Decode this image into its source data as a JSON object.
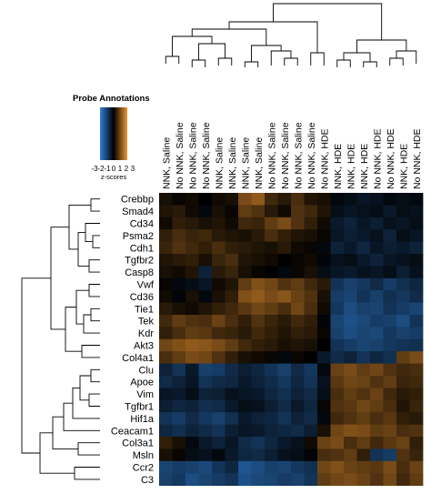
{
  "legend": {
    "title": "Probe Annotations",
    "tick_labels": [
      "-3",
      "-2",
      "-1",
      "0",
      "1",
      "2",
      "3"
    ],
    "label": "z-scores",
    "colors": [
      "#2f7fd6",
      "#000000",
      "#f0962f"
    ]
  },
  "chart_data": {
    "type": "heatmap",
    "title": "",
    "xlabel": "",
    "ylabel": "",
    "color_range": [
      -3,
      3
    ],
    "colors": {
      "low": "#2f7fd6",
      "mid": "#000000",
      "high": "#f0962f"
    },
    "columns": [
      "NNK, Saline",
      "No NNK, Saline",
      "No NNK, Saline",
      "No NNK, Saline",
      "NNK, Saline",
      "NNK, Saline",
      "NNK, Saline",
      "NNK, Saline",
      "No NNK, Saline",
      "No NNK, Saline",
      "No NNK, Saline",
      "No NNK, Saline",
      "No NNK, HDE",
      "NNK, HDE",
      "NNK, HDE",
      "NNK, HDE",
      "No NNK, HDE",
      "No NNK, HDE",
      "NNK, HDE",
      "No NNK, HDE"
    ],
    "rows": [
      "Crebbp",
      "Smad4",
      "Cd34",
      "Psma2",
      "Cdh1",
      "Tgfbr2",
      "Casp8",
      "Vwf",
      "Cd36",
      "Tie1",
      "Tek",
      "Kdr",
      "Akt3",
      "Col4a1",
      "Clu",
      "Apoe",
      "Vim",
      "Tgfbr1",
      "Hif1a",
      "Ceacam1",
      "Col3a1",
      "Msln",
      "Ccr2",
      "C3"
    ],
    "values": [
      [
        0.3,
        0.1,
        0.2,
        0.0,
        0.2,
        0.3,
        1.5,
        1.8,
        0.8,
        0.5,
        0.9,
        0.4,
        0.3,
        -0.2,
        -0.3,
        -0.5,
        -0.4,
        -0.2,
        -0.3,
        -0.2
      ],
      [
        0.4,
        0.5,
        0.2,
        -0.2,
        0.3,
        0.1,
        1.2,
        1.0,
        0.5,
        0.2,
        1.0,
        0.8,
        0.4,
        -0.3,
        -0.5,
        -0.4,
        -0.3,
        -0.6,
        -0.3,
        -0.4
      ],
      [
        0.2,
        0.6,
        0.5,
        0.3,
        0.4,
        0.2,
        0.8,
        0.7,
        1.2,
        1.5,
        1.0,
        0.6,
        0.2,
        -0.6,
        -0.8,
        -0.5,
        -0.7,
        -0.4,
        -0.5,
        -0.3
      ],
      [
        0.6,
        0.9,
        0.7,
        0.8,
        0.5,
        0.4,
        0.3,
        0.5,
        0.9,
        0.6,
        0.4,
        0.3,
        0.1,
        -0.5,
        -0.7,
        -0.6,
        -0.4,
        -0.8,
        -0.3,
        -0.5
      ],
      [
        0.7,
        1.0,
        0.8,
        0.6,
        0.9,
        0.6,
        0.5,
        0.4,
        0.3,
        0.5,
        0.2,
        0.1,
        -0.2,
        -0.8,
        -0.6,
        -0.9,
        -0.5,
        -0.7,
        -0.6,
        -0.8
      ],
      [
        0.4,
        0.5,
        0.6,
        0.3,
        0.7,
        0.9,
        0.4,
        0.3,
        0.2,
        0.0,
        0.1,
        0.2,
        -0.1,
        -0.4,
        -0.3,
        -0.6,
        -0.8,
        -0.5,
        -0.4,
        -0.3
      ],
      [
        0.3,
        0.2,
        0.4,
        -0.8,
        0.5,
        0.7,
        0.3,
        0.1,
        0.0,
        -0.2,
        0.1,
        0.3,
        -0.3,
        -0.5,
        -0.6,
        -0.4,
        -0.5,
        -0.3,
        -0.7,
        -0.4
      ],
      [
        0.1,
        -0.2,
        -0.3,
        -0.5,
        0.2,
        0.4,
        1.2,
        1.6,
        1.4,
        1.0,
        1.2,
        0.8,
        0.5,
        -1.2,
        -1.5,
        -1.3,
        -1.0,
        -1.4,
        -1.1,
        -0.9
      ],
      [
        0.2,
        -0.1,
        0.3,
        -0.2,
        0.3,
        0.6,
        1.6,
        1.8,
        1.5,
        1.7,
        1.3,
        1.0,
        0.3,
        -1.4,
        -1.6,
        -1.2,
        -1.5,
        -1.1,
        -1.3,
        -1.0
      ],
      [
        0.5,
        0.3,
        0.2,
        0.4,
        0.6,
        0.8,
        1.1,
        1.4,
        1.2,
        0.9,
        1.4,
        0.9,
        0.2,
        -1.3,
        -1.8,
        -1.5,
        -1.6,
        -1.2,
        -1.4,
        -1.6
      ],
      [
        0.8,
        1.2,
        1.0,
        0.9,
        1.3,
        0.9,
        0.6,
        1.0,
        0.7,
        0.5,
        0.8,
        0.6,
        -0.1,
        -1.6,
        -1.9,
        -1.7,
        -1.4,
        -1.5,
        -1.8,
        -1.2
      ],
      [
        0.6,
        0.9,
        1.2,
        1.1,
        0.8,
        0.7,
        0.5,
        0.8,
        0.6,
        0.4,
        0.6,
        0.5,
        0.1,
        -1.5,
        -1.8,
        -1.6,
        -1.7,
        -1.3,
        -1.5,
        -1.4
      ],
      [
        1.4,
        1.6,
        1.8,
        1.7,
        1.5,
        1.2,
        0.8,
        0.6,
        0.5,
        0.3,
        0.4,
        0.3,
        0.0,
        -1.2,
        -1.4,
        -1.6,
        -1.5,
        -1.3,
        -1.2,
        -1.1
      ],
      [
        0.9,
        1.2,
        1.5,
        1.4,
        1.0,
        0.6,
        0.3,
        0.2,
        0.1,
        -0.2,
        0.1,
        0.0,
        -0.6,
        -1.0,
        -0.8,
        -1.2,
        -0.9,
        -1.1,
        1.2,
        1.5
      ],
      [
        -0.8,
        -1.2,
        -0.6,
        -1.5,
        -1.4,
        -1.0,
        -0.7,
        -0.9,
        -1.2,
        -1.5,
        -1.0,
        -1.3,
        -0.2,
        1.3,
        1.5,
        1.2,
        1.4,
        1.0,
        0.8,
        0.9
      ],
      [
        -1.0,
        -0.8,
        -0.5,
        -1.2,
        -1.0,
        -0.9,
        -0.6,
        -0.8,
        -1.0,
        -1.3,
        -0.9,
        -1.2,
        -0.4,
        1.1,
        1.4,
        1.3,
        1.0,
        1.2,
        0.7,
        0.8
      ],
      [
        -0.5,
        -0.6,
        -0.3,
        -0.8,
        -0.7,
        -0.4,
        -0.5,
        -0.6,
        -0.9,
        -1.1,
        -0.8,
        -1.0,
        -0.3,
        0.9,
        1.2,
        1.0,
        1.3,
        0.8,
        0.5,
        0.6
      ],
      [
        -0.7,
        -0.9,
        -0.8,
        -1.1,
        -1.0,
        -0.6,
        -0.3,
        -0.4,
        -0.7,
        -1.0,
        -0.6,
        -0.9,
        0.1,
        1.0,
        1.1,
        1.4,
        1.2,
        0.9,
        0.4,
        0.7
      ],
      [
        -1.2,
        -1.4,
        -1.0,
        -1.3,
        -1.5,
        -1.1,
        -0.6,
        -0.8,
        -0.9,
        -1.2,
        -0.8,
        -1.0,
        -0.2,
        0.8,
        1.0,
        1.2,
        0.9,
        1.1,
        0.6,
        0.5
      ],
      [
        -0.9,
        -1.1,
        -0.8,
        -1.0,
        -1.2,
        -0.7,
        -0.5,
        -0.6,
        -0.8,
        -0.9,
        -1.0,
        -0.7,
        0.3,
        1.4,
        1.6,
        1.5,
        1.2,
        1.3,
        0.9,
        1.0
      ],
      [
        0.6,
        0.3,
        -0.2,
        -0.6,
        -0.8,
        -0.5,
        -1.0,
        -1.2,
        -0.9,
        -0.6,
        -0.4,
        0.2,
        1.3,
        1.5,
        0.9,
        1.2,
        0.8,
        1.1,
        1.3,
        0.6
      ],
      [
        0.3,
        0.1,
        -0.3,
        -0.4,
        -0.2,
        -0.6,
        -0.9,
        -1.0,
        -0.7,
        -0.4,
        -0.3,
        -0.1,
        0.9,
        1.0,
        1.2,
        0.6,
        -1.2,
        -1.4,
        1.0,
        0.7
      ],
      [
        -1.6,
        -1.4,
        -1.5,
        -1.7,
        -1.2,
        -0.9,
        -2.0,
        -1.8,
        -1.5,
        -1.6,
        -1.3,
        -1.1,
        1.4,
        1.6,
        1.3,
        1.2,
        1.1,
        1.5,
        0.9,
        1.3
      ],
      [
        -1.5,
        -1.3,
        -1.8,
        -1.6,
        -1.4,
        -1.2,
        -1.9,
        -1.7,
        -1.6,
        -1.4,
        -1.5,
        -1.2,
        1.2,
        1.4,
        1.5,
        1.3,
        1.0,
        1.4,
        0.8,
        1.2
      ]
    ]
  }
}
